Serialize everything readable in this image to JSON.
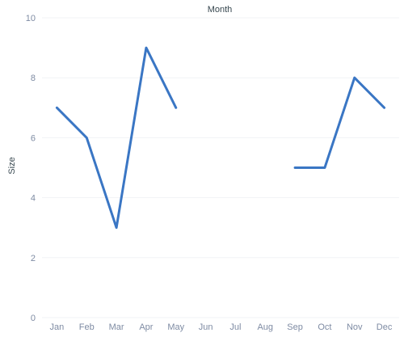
{
  "chart_data": {
    "type": "line",
    "title": "",
    "xlabel": "Month",
    "ylabel": "Size",
    "categories": [
      "Jan",
      "Feb",
      "Mar",
      "Apr",
      "May",
      "Jun",
      "Jul",
      "Aug",
      "Sep",
      "Oct",
      "Nov",
      "Dec"
    ],
    "series": [
      {
        "values": [
          7,
          6,
          3,
          9,
          7,
          null,
          null,
          null,
          5,
          5,
          8,
          7
        ],
        "color": "#3a76c4"
      }
    ],
    "ylim": [
      0,
      10
    ],
    "yticks": [
      "0",
      "2",
      "4",
      "6",
      "8",
      "10"
    ],
    "grid": true,
    "legend": "none"
  }
}
